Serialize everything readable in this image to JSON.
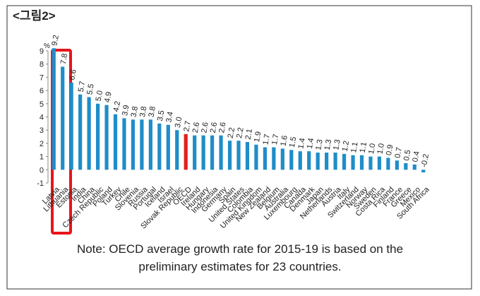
{
  "chart_data": {
    "type": "bar",
    "title": "<그림2>",
    "y_unit": "%",
    "categories": [
      "Latvia",
      "Lithuania",
      "Estonia",
      "India",
      "China",
      "Czech Republic",
      "Poland",
      "Turkey",
      "Chile",
      "Slovenia",
      "Russia",
      "Portugal",
      "Iceland",
      "Israel",
      "Slovak Republic",
      "OECD",
      "Ireland",
      "Hungary",
      "Indonesia",
      "Germany",
      "Spain",
      "United States",
      "Colombia",
      "United Kingdom",
      "New Zealand",
      "Belgium",
      "Australia",
      "Luxembourg",
      "Canada",
      "Denmark",
      "Japan",
      "Netherlands",
      "Austria",
      "Italy",
      "Switzerland",
      "Norway",
      "Sweden",
      "Costa Rica",
      "Finland",
      "France",
      "Greece",
      "Mexico",
      "South Africa"
    ],
    "values": [
      9.2,
      7.8,
      6.6,
      5.7,
      5.5,
      5.0,
      4.9,
      4.2,
      3.9,
      3.8,
      3.8,
      3.8,
      3.5,
      3.4,
      3.0,
      2.7,
      2.6,
      2.6,
      2.6,
      2.6,
      2.2,
      2.2,
      2.1,
      1.9,
      1.7,
      1.7,
      1.6,
      1.5,
      1.4,
      1.4,
      1.3,
      1.3,
      1.3,
      1.2,
      1.1,
      1.1,
      1.0,
      1.0,
      0.9,
      0.7,
      0.5,
      0.4,
      -0.2
    ],
    "value_labels": [
      "9.2",
      "7.8",
      "6.6",
      "5.7",
      "5.5",
      "5.0",
      "4.9",
      "4.2",
      "3.9",
      "3.8",
      "3.8",
      "3.8",
      "3.5",
      "3.4",
      "3.0",
      "2.7",
      "2.6",
      "2.6",
      "2.6",
      "2.6",
      "2.2",
      "2.2",
      "2.1",
      "1.9",
      "1.7",
      "1.7",
      "1.6",
      "1.5",
      "1.4",
      "1.4",
      "1.3",
      "1.3",
      "1.3",
      "1.2",
      "1.1",
      "1.1",
      "1.0",
      "1.0",
      "0.9",
      "0.7",
      "0.5",
      "0.4",
      "-0.2"
    ],
    "color": "#1f8dc8",
    "highlight": {
      "category": "OECD",
      "color": "#e0201b"
    },
    "ylim": [
      -1,
      9
    ],
    "yticks": [
      -1,
      0,
      1,
      2,
      3,
      4,
      5,
      6,
      7,
      8,
      9
    ],
    "grid": false,
    "note": [
      "Note: OECD average growth rate for 2015-19 is based on the",
      "preliminary estimates for 23 countries."
    ]
  }
}
